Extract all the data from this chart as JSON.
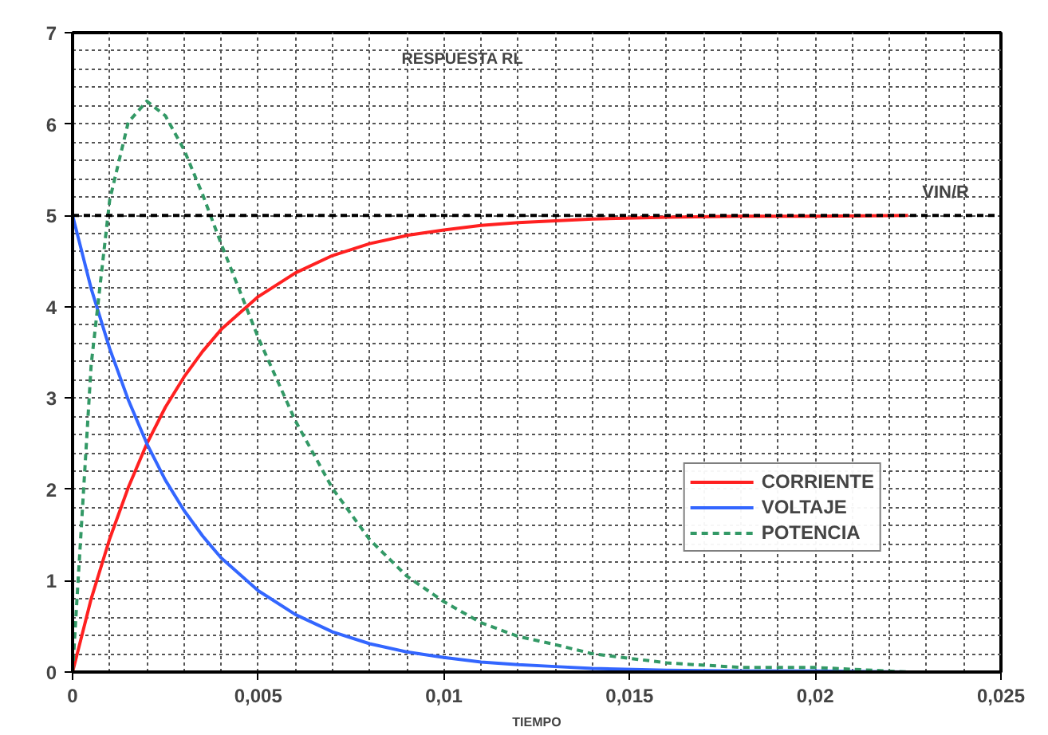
{
  "chart_data": {
    "type": "line",
    "title": "RESPUESTA RL",
    "xlabel": "TIEMPO",
    "x": [
      0,
      0.0005,
      0.001,
      0.0015,
      0.002,
      0.0025,
      0.003,
      0.0035,
      0.004,
      0.005,
      0.006,
      0.007,
      0.008,
      0.009,
      0.01,
      0.011,
      0.012,
      0.013,
      0.014,
      0.016,
      0.018,
      0.02,
      0.0225
    ],
    "series": [
      {
        "name": "CORRIENTE",
        "color": "#ff2020",
        "line_style": "solid",
        "values": [
          0,
          0.8,
          1.46,
          2.02,
          2.5,
          2.9,
          3.23,
          3.51,
          3.75,
          4.11,
          4.37,
          4.56,
          4.69,
          4.78,
          4.84,
          4.89,
          4.92,
          4.94,
          4.96,
          4.98,
          4.99,
          4.99,
          5.0
        ]
      },
      {
        "name": "VOLTAJE",
        "color": "#3366ff",
        "line_style": "solid",
        "values": [
          5,
          4.2,
          3.54,
          2.98,
          2.5,
          2.1,
          1.77,
          1.49,
          1.25,
          0.89,
          0.63,
          0.44,
          0.31,
          0.22,
          0.16,
          0.11,
          0.08,
          0.06,
          0.04,
          0.02,
          0.01,
          0.01,
          0.0
        ]
      },
      {
        "name": "POTENCIA",
        "color": "#339966",
        "line_style": "dashed",
        "values": [
          0,
          3.36,
          5.17,
          6.02,
          6.25,
          6.09,
          5.72,
          5.23,
          4.69,
          3.66,
          2.75,
          2.01,
          1.45,
          1.05,
          0.77,
          0.54,
          0.39,
          0.3,
          0.2,
          0.1,
          0.05,
          0.05,
          0.0
        ]
      }
    ],
    "xlim": [
      0,
      0.025
    ],
    "ylim": [
      0,
      7
    ],
    "xticks": [
      0,
      {
        "value": 0.005,
        "label": "0,005"
      },
      {
        "value": 0.01,
        "label": "0,01"
      },
      {
        "value": 0.015,
        "label": "0,015"
      },
      {
        "value": 0.02,
        "label": "0,02"
      },
      {
        "value": 0.025,
        "label": "0,025"
      }
    ],
    "yticks": [
      0,
      1,
      2,
      3,
      4,
      5,
      6,
      7
    ],
    "ref_lines": [
      {
        "axis": "y",
        "value": 5,
        "label": "VIN/R",
        "color": "#000000",
        "line_style": "dashed"
      }
    ],
    "grid": true,
    "legend": "bottom right",
    "marker": "none"
  }
}
